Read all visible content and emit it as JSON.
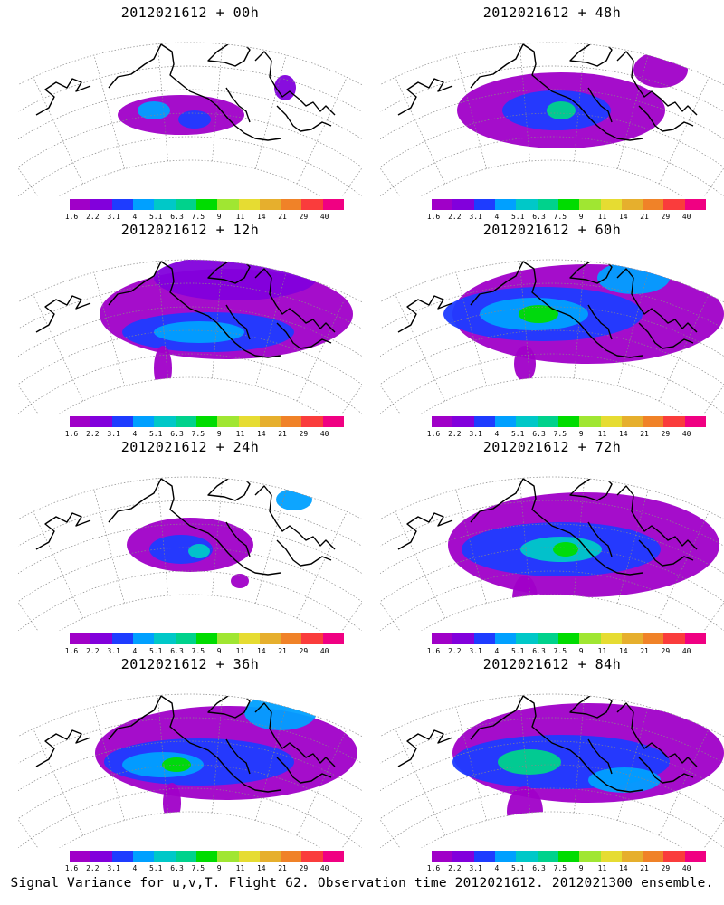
{
  "panels": [
    {
      "title": "2012021612 + 00h",
      "col": 0,
      "row": 0,
      "stage": 0
    },
    {
      "title": "2012021612 + 48h",
      "col": 1,
      "row": 0,
      "stage": 4
    },
    {
      "title": "2012021612 + 12h",
      "col": 0,
      "row": 1,
      "stage": 1
    },
    {
      "title": "2012021612 + 60h",
      "col": 1,
      "row": 1,
      "stage": 5
    },
    {
      "title": "2012021612 + 24h",
      "col": 0,
      "row": 2,
      "stage": 2
    },
    {
      "title": "2012021612 + 72h",
      "col": 1,
      "row": 2,
      "stage": 6
    },
    {
      "title": "2012021612 + 36h",
      "col": 0,
      "row": 3,
      "stage": 3
    },
    {
      "title": "2012021612 + 84h",
      "col": 1,
      "row": 3,
      "stage": 7
    }
  ],
  "colorbar": {
    "colors": [
      "#a000c8",
      "#8200dc",
      "#1e3cff",
      "#00a0ff",
      "#00c8c8",
      "#00d28c",
      "#00dc00",
      "#a0e632",
      "#e6dc32",
      "#e6af2d",
      "#f08228",
      "#fa3c3c",
      "#f00082"
    ],
    "labels": [
      "1.6",
      "2.2",
      "3.1",
      "4",
      "5.1",
      "6.3",
      "7.5",
      "9",
      "11",
      "14",
      "21",
      "29",
      "40"
    ]
  },
  "caption": "Signal Variance for u,v,T. Flight 62. Observation time 2012021612. 2012021300 ensemble."
}
